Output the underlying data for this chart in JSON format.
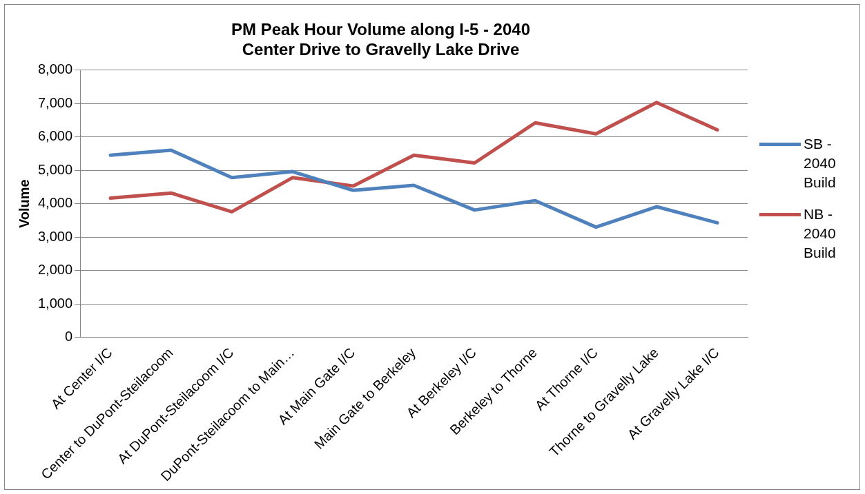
{
  "chart_data": {
    "type": "line",
    "title": "PM Peak Hour Volume along I-5 - 2040\nCenter Drive to Gravelly Lake Drive",
    "ylabel": "Volume",
    "categories": [
      "At Center I/C",
      "Center to DuPont-Steilacoom",
      "At DuPont-Steilacoom I/C",
      "DuPont-Steilacoom to Main…",
      "At Main Gate I/C",
      "Main Gate to Berkeley",
      "At Berkeley I/C",
      "Berkeley to Thorne",
      "At Thorne I/C",
      "Thorne to Gravelly Lake",
      "At Gravelly Lake I/C"
    ],
    "series": [
      {
        "name": "SB - 2040 Build",
        "color": "#4f81bd",
        "values": [
          5450,
          5600,
          4780,
          4960,
          4400,
          4550,
          3810,
          4090,
          3300,
          3910,
          3430
        ]
      },
      {
        "name": "NB - 2040 Build",
        "color": "#c0504d",
        "values": [
          4170,
          4320,
          3760,
          4780,
          4530,
          5450,
          5220,
          6420,
          6090,
          7030,
          6210
        ]
      }
    ],
    "ylim": [
      0,
      8000
    ],
    "yticks": [
      {
        "value": 0,
        "label": "0"
      },
      {
        "value": 1000,
        "label": "1,000"
      },
      {
        "value": 2000,
        "label": "2,000"
      },
      {
        "value": 3000,
        "label": "3,000"
      },
      {
        "value": 4000,
        "label": "4,000"
      },
      {
        "value": 5000,
        "label": "5,000"
      },
      {
        "value": 6000,
        "label": "6,000"
      },
      {
        "value": 7000,
        "label": "7,000"
      },
      {
        "value": 8000,
        "label": "8,000"
      }
    ],
    "grid": "y",
    "legend": "right",
    "marker": "none",
    "line_style": "solid"
  }
}
